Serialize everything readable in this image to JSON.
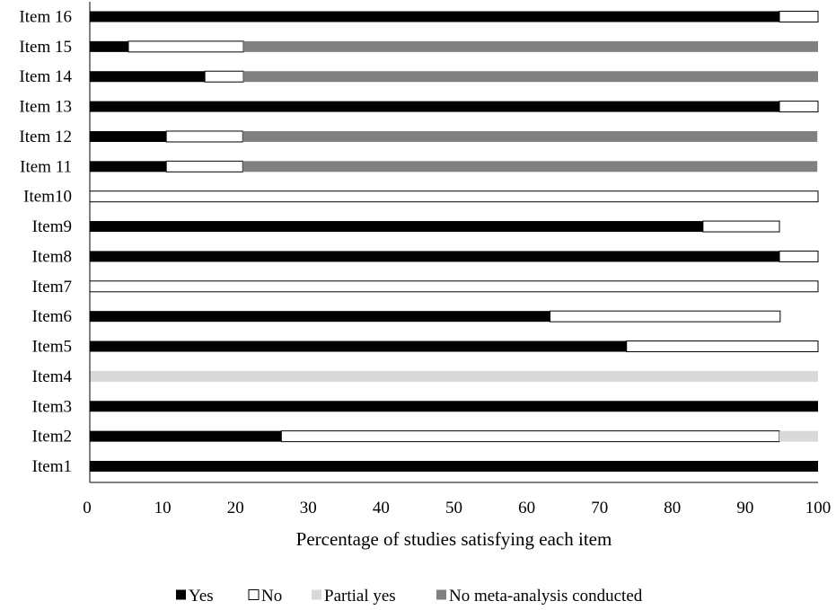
{
  "chart_data": {
    "type": "bar",
    "orientation": "horizontal",
    "stacked": true,
    "title": "",
    "xlabel": "Percentage of studies satisfying each item",
    "ylabel": "",
    "xlim": [
      0,
      100
    ],
    "xticks": [
      "0",
      "10",
      "20",
      "30",
      "40",
      "50",
      "60",
      "70",
      "80",
      "90",
      "100"
    ],
    "grid": false,
    "legend_position": "bottom",
    "categories": [
      "Item1",
      "Item2",
      "Item3",
      "Item4",
      "Item5",
      "Item6",
      "Item7",
      "Item8",
      "Item9",
      "Item10",
      "Item 11",
      "Item 12",
      "Item 13",
      "Item 14",
      "Item 15",
      "Item 16"
    ],
    "series": [
      {
        "name": "Yes",
        "color": "#000000",
        "values": [
          100,
          26.3,
          100,
          0,
          73.7,
          63.2,
          0,
          94.7,
          84.2,
          0,
          10.5,
          10.5,
          94.7,
          15.8,
          5.3,
          94.7
        ]
      },
      {
        "name": "No",
        "color": "#ffffff",
        "values": [
          0,
          68.4,
          0,
          0,
          26.3,
          31.6,
          100,
          5.3,
          10.5,
          100,
          10.5,
          10.5,
          5.3,
          5.3,
          15.8,
          5.3
        ]
      },
      {
        "name": "Partial yes",
        "color": "#d9d9d9",
        "values": [
          0,
          5.3,
          0,
          100,
          0,
          0,
          0,
          0,
          0,
          0,
          0,
          0,
          0,
          0,
          0,
          0
        ]
      },
      {
        "name": "No meta-analysis conducted",
        "color": "#808080",
        "values": [
          0,
          0,
          0,
          0,
          0,
          0,
          0,
          0,
          0,
          0,
          78.9,
          78.9,
          0,
          78.9,
          78.9,
          0
        ]
      }
    ]
  }
}
